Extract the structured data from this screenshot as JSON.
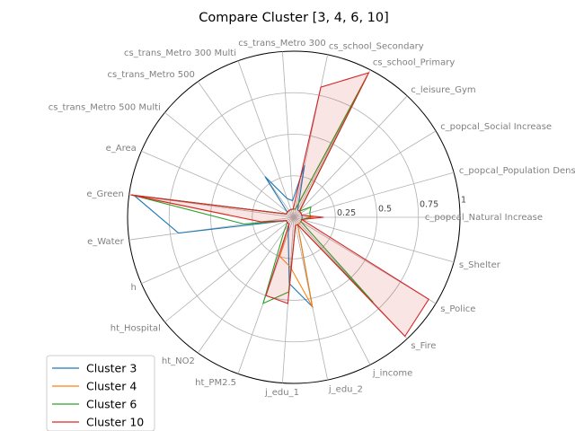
{
  "chart_data": {
    "type": "radar",
    "title": "Compare Cluster [3, 4, 6, 10]",
    "axes": [
      "c_popcal_Natural Increase",
      "c_popcal_Population Density",
      "c_popcal_Social Increase",
      "c_leisure_Gym",
      "cs_school_Primary",
      "cs_school_Secondary",
      "cs_trans_Metro 300",
      "cs_trans_Metro 300 Multi",
      "cs_trans_Metro 500",
      "cs_trans_Metro 500 Multi",
      "e_Area",
      "e_Green",
      "e_Water",
      "h",
      "ht_Hospital",
      "ht_NO2",
      "ht_PM2.5",
      "j_edu_1",
      "j_edu_2",
      "j_income",
      "s_Fire",
      "s_Police",
      "s_Shelter"
    ],
    "ticks": [
      "0.25",
      "0.5",
      "0.75",
      "1"
    ],
    "rmax": 1,
    "grid": true,
    "legend_position": "lower-left",
    "series": [
      {
        "name": "Cluster 3",
        "color": "#1f77b4",
        "fill": false,
        "values": [
          0.05,
          0.05,
          0.05,
          0.05,
          0.05,
          0.32,
          0.1,
          0.12,
          0.3,
          0.05,
          0.05,
          0.97,
          0.7,
          0.05,
          0.05,
          0.05,
          0.1,
          0.4,
          0.55,
          0.05,
          0.05,
          0.05,
          0.05
        ]
      },
      {
        "name": "Cluster 4",
        "color": "#ff7f0e",
        "fill": false,
        "values": [
          0.12,
          0.05,
          0.05,
          0.05,
          0.96,
          0.05,
          0.05,
          0.05,
          0.05,
          0.05,
          0.05,
          0.99,
          0.2,
          0.05,
          0.05,
          0.05,
          0.25,
          0.3,
          0.55,
          0.05,
          0.05,
          0.05,
          0.05
        ]
      },
      {
        "name": "Cluster 6",
        "color": "#2ca02c",
        "fill": false,
        "values": [
          0.1,
          0.1,
          0.12,
          0.05,
          0.95,
          0.05,
          0.05,
          0.05,
          0.05,
          0.05,
          0.05,
          0.98,
          0.3,
          0.05,
          0.05,
          0.1,
          0.55,
          0.45,
          0.05,
          0.05,
          0.7,
          0.05,
          0.05
        ]
      },
      {
        "name": "Cluster 10",
        "color": "#d62728",
        "fill": true,
        "values": [
          0.18,
          0.05,
          0.05,
          0.05,
          0.98,
          0.8,
          0.05,
          0.05,
          0.05,
          0.05,
          0.05,
          0.99,
          0.2,
          0.05,
          0.05,
          0.05,
          0.5,
          0.52,
          0.05,
          0.05,
          0.98,
          0.95,
          0.05
        ]
      }
    ]
  }
}
